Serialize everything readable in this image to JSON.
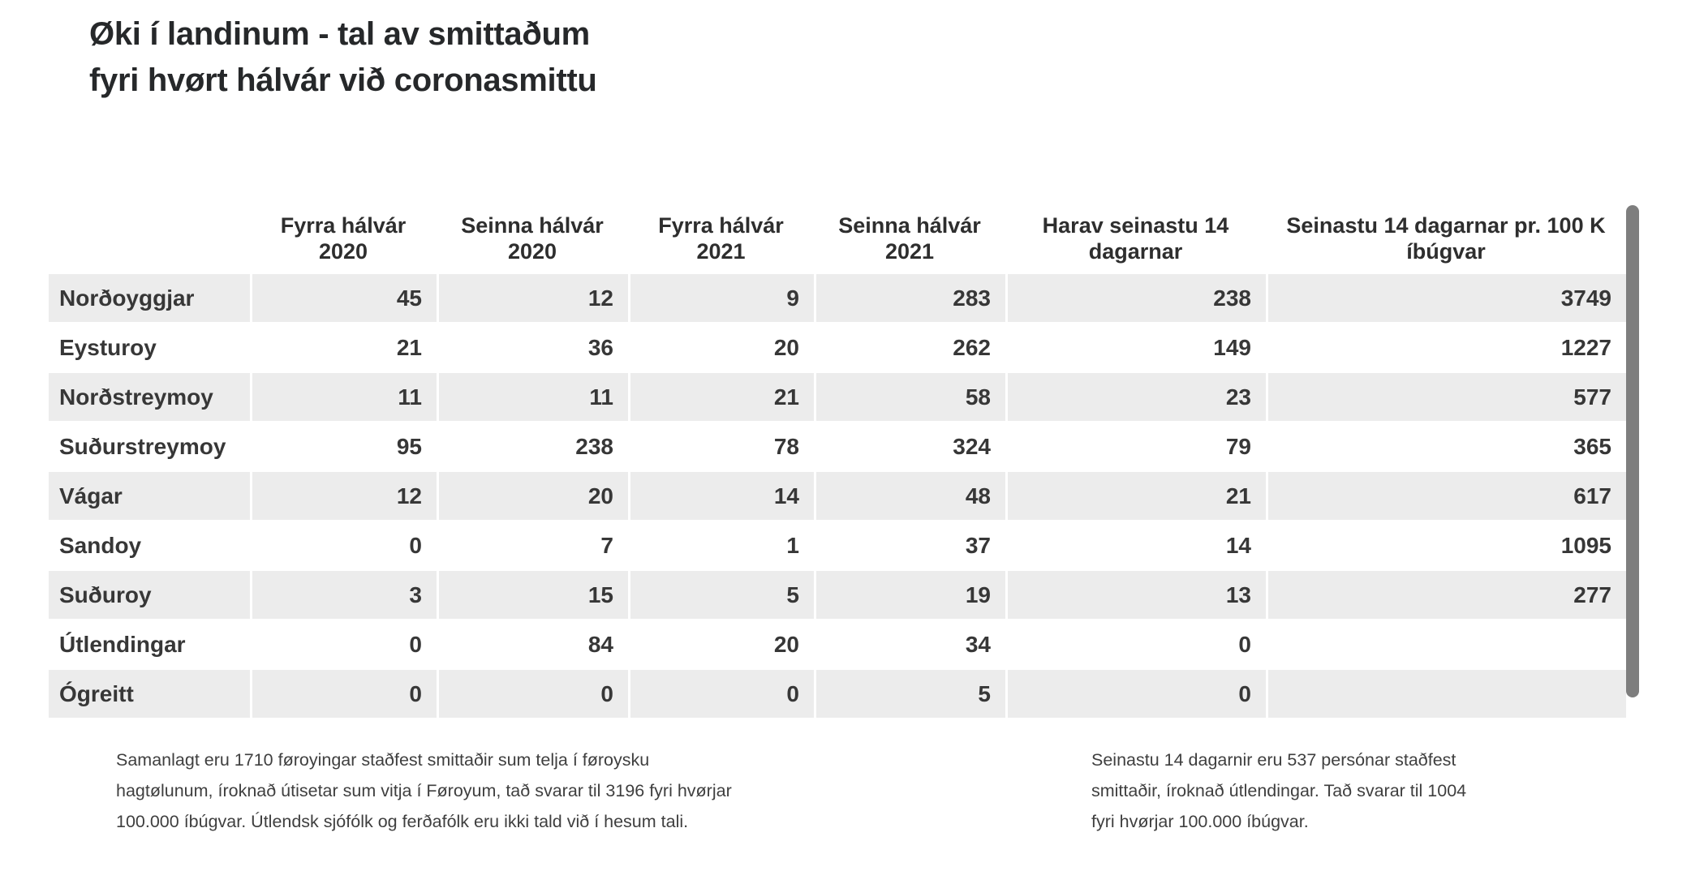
{
  "title": {
    "line1": "Øki í landinum - tal av smittaðum",
    "line2": "fyri hvørt hálvár við coronasmittu"
  },
  "chart_data": {
    "type": "table",
    "title": "Øki í landinum - tal av smittaðum fyri hvørt hálvár við coronasmittu",
    "columns": [
      "",
      "Fyrra hálvár 2020",
      "Seinna hálvár 2020",
      "Fyrra hálvár 2021",
      "Seinna hálvár 2021",
      "Harav seinastu 14 dagarnar",
      "Seinastu 14 dagarnar pr. 100 K íbúgvar"
    ],
    "rows": [
      {
        "label": "Norðoyggjar",
        "values": [
          "45",
          "12",
          "9",
          "283",
          "238",
          "3749"
        ]
      },
      {
        "label": "Eysturoy",
        "values": [
          "21",
          "36",
          "20",
          "262",
          "149",
          "1227"
        ]
      },
      {
        "label": "Norðstreymoy",
        "values": [
          "11",
          "11",
          "21",
          "58",
          "23",
          "577"
        ]
      },
      {
        "label": "Suðurstreymoy",
        "values": [
          "95",
          "238",
          "78",
          "324",
          "79",
          "365"
        ]
      },
      {
        "label": "Vágar",
        "values": [
          "12",
          "20",
          "14",
          "48",
          "21",
          "617"
        ]
      },
      {
        "label": "Sandoy",
        "values": [
          "0",
          "7",
          "1",
          "37",
          "14",
          "1095"
        ]
      },
      {
        "label": "Suðuroy",
        "values": [
          "3",
          "15",
          "5",
          "19",
          "13",
          "277"
        ]
      },
      {
        "label": "Útlendingar",
        "values": [
          "0",
          "84",
          "20",
          "34",
          "0",
          ""
        ]
      },
      {
        "label": "Ógreitt",
        "values": [
          "0",
          "0",
          "0",
          "5",
          "0",
          ""
        ]
      }
    ],
    "layout_hints": {
      "striped_rows": true,
      "stripe_color": "#ececec",
      "numbers_right_aligned": true,
      "headers_centered": true
    }
  },
  "footnotes": {
    "left": {
      "lines": [
        "Samanlagt eru 1710 føroyingar staðfest smittaðir sum telja í føroysku",
        "hagtølunum, íroknað útisetar sum vitja í Føroyum, tað svarar til 3196 fyri hvørjar",
        "100.000 íbúgvar. Útlendsk sjófólk og ferðafólk eru ikki tald við í hesum tali."
      ]
    },
    "right": {
      "lines": [
        "Seinastu 14 dagarnir eru 537 persónar staðfest",
        "smittaðir, íroknað útlendingar. Tað svarar til 1004",
        "fyri hvørjar 100.000 íbúgvar."
      ]
    }
  },
  "colors": {
    "stripe": "#ececec",
    "scrollbar": "#7e7e7e",
    "title_text": "#26282a",
    "table_text": "#373737",
    "footnote_text": "#3f3f3f"
  }
}
